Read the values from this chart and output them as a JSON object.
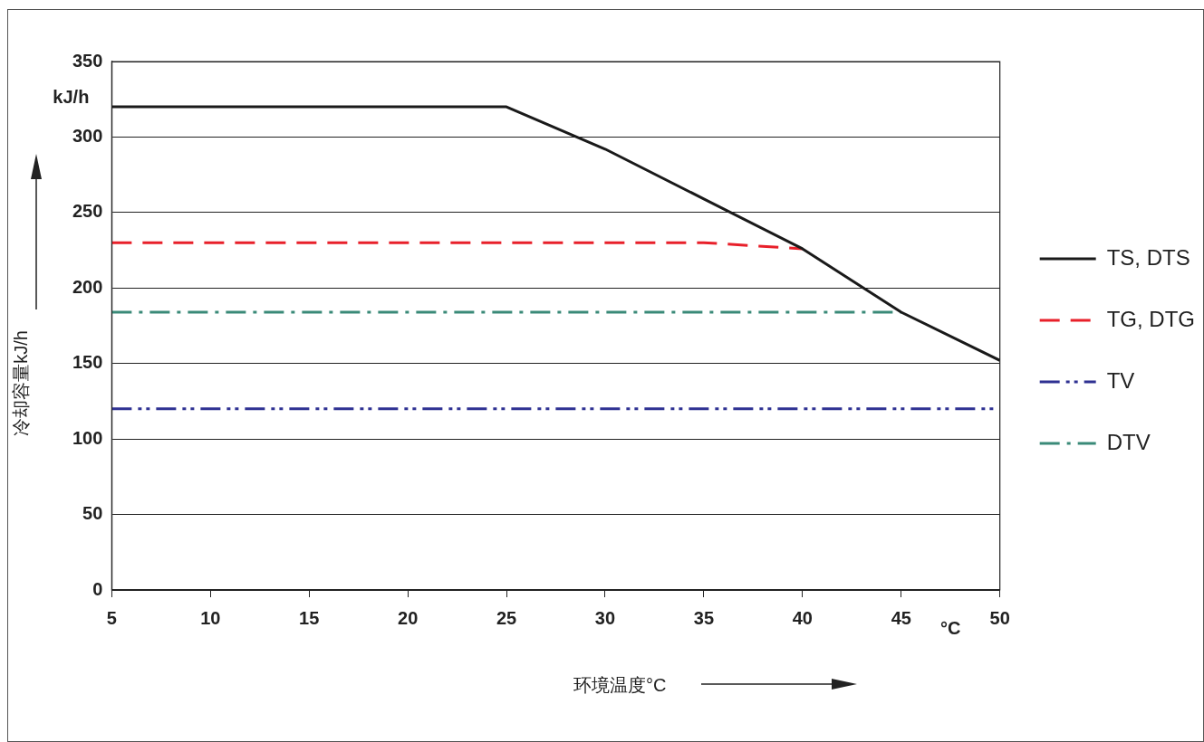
{
  "chart_data": {
    "type": "line",
    "xlabel": "环境温度°C",
    "ylabel": "冷却容量kJ/h",
    "annotations": [
      "kJ/h",
      "°C"
    ],
    "xlim": [
      5,
      50
    ],
    "xticks": [
      5,
      10,
      15,
      20,
      25,
      30,
      35,
      40,
      45,
      50
    ],
    "ylim": [
      0,
      350
    ],
    "yticks": [
      0,
      50,
      100,
      150,
      200,
      250,
      300,
      350
    ],
    "grid": "y",
    "legend": "right",
    "marker": "none",
    "series": [
      {
        "name": "TS, DTS",
        "color": "#1a1a1a",
        "line_style": "solid",
        "x": [
          5,
          25,
          30,
          35,
          40,
          45,
          50
        ],
        "values": [
          320,
          320,
          292,
          259,
          226,
          184,
          152
        ]
      },
      {
        "name": "TG, DTG",
        "color": "#e8202a",
        "line_style": "dashed",
        "x": [
          5,
          35,
          40
        ],
        "values": [
          230,
          230,
          226
        ]
      },
      {
        "name": "TV",
        "color": "#2e3192",
        "line_style": "dashdotdot",
        "x": [
          5,
          50
        ],
        "values": [
          120,
          120
        ]
      },
      {
        "name": "DTV",
        "color": "#3a8a78",
        "line_style": "dashdot",
        "x": [
          5,
          45
        ],
        "values": [
          184,
          184
        ]
      }
    ]
  }
}
